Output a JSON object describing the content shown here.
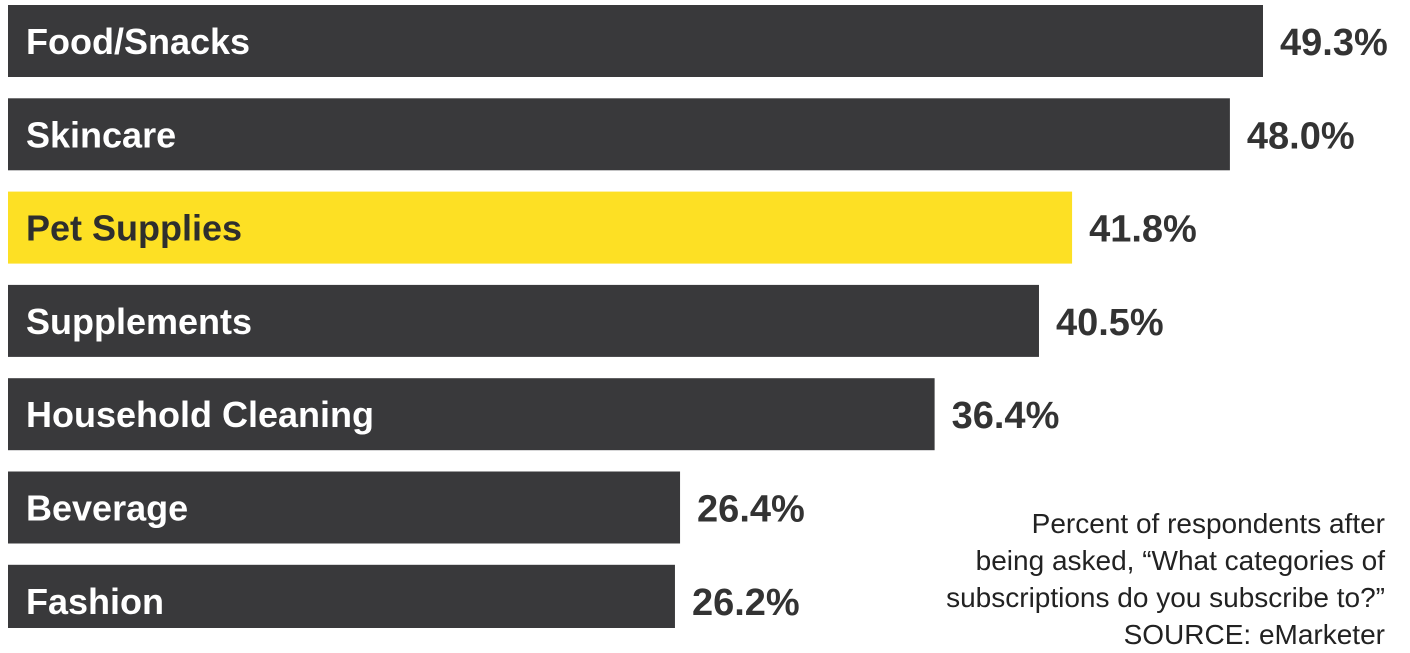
{
  "chart_data": {
    "type": "bar",
    "orientation": "horizontal",
    "categories": [
      "Food/Snacks",
      "Skincare",
      "Pet Supplies",
      "Supplements",
      "Household Cleaning",
      "Beverage",
      "Fashion"
    ],
    "values": [
      49.3,
      48.0,
      41.8,
      40.5,
      36.4,
      26.4,
      26.2
    ],
    "value_labels": [
      "49.3%",
      "48.0%",
      "41.8%",
      "40.5%",
      "36.4%",
      "26.4%",
      "26.2%"
    ],
    "highlight_category": "Pet Supplies",
    "xlim": [
      0,
      55
    ],
    "grid": false,
    "legend": "none",
    "title": "",
    "xlabel": "",
    "ylabel": ""
  },
  "colors": {
    "bar": "#39393b",
    "highlight": "#fde024",
    "bar_text": "#ffffff",
    "highlight_text": "#2e2e2e",
    "value_text": "#333333"
  },
  "note": {
    "lines": [
      "Percent of respondents after",
      "being asked, “What categories of",
      "subscriptions do you subscribe to?”",
      "SOURCE: eMarketer"
    ]
  }
}
